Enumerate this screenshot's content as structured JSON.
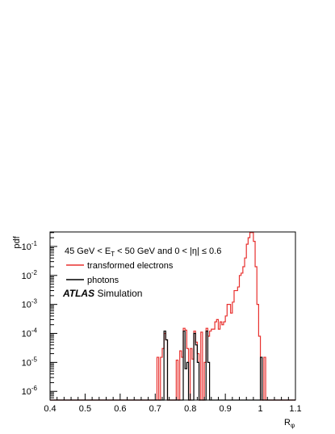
{
  "chart_data": {
    "type": "step-histogram",
    "x_label_main": "R",
    "x_label_sub": "φ",
    "y_label": "pdf",
    "x_range": [
      0.4,
      1.1
    ],
    "y_range_log10": [
      -6.3,
      -0.5
    ],
    "y_scale": "log",
    "x_ticks": [
      "0.4",
      "0.5",
      "0.6",
      "0.7",
      "0.8",
      "0.9",
      "1",
      "1.1"
    ],
    "y_ticks": [
      {
        "base": "10",
        "exp": "-1",
        "value": 0.1
      },
      {
        "base": "10",
        "exp": "-2",
        "value": 0.01
      },
      {
        "base": "10",
        "exp": "-3",
        "value": 0.001
      },
      {
        "base": "10",
        "exp": "-4",
        "value": 0.0001
      },
      {
        "base": "10",
        "exp": "-5",
        "value": 1e-05
      },
      {
        "base": "10",
        "exp": "-6",
        "value": 1e-06
      }
    ],
    "annotation": {
      "part1": "45 GeV < E",
      "sub": "T",
      "part2": " < 50 GeV and 0 < |η| ≤ 0.6"
    },
    "atlas_bold": "ATLAS",
    "atlas_rest": " Simulation",
    "bin_width": 0.005,
    "series": [
      {
        "name": "transformed electrons",
        "color": "#e8302e",
        "bins": [
          [
            0.7,
            5e-07
          ],
          [
            0.705,
            1.5e-05
          ],
          [
            0.71,
            5e-07
          ],
          [
            0.715,
            1.5e-05
          ],
          [
            0.72,
            3e-05
          ],
          [
            0.725,
            0.0001
          ],
          [
            0.73,
            6e-05
          ],
          [
            0.735,
            5e-07
          ],
          [
            0.76,
            1.2e-05
          ],
          [
            0.765,
            5e-07
          ],
          [
            0.77,
            2.5e-05
          ],
          [
            0.775,
            1.5e-05
          ],
          [
            0.78,
            0.00015
          ],
          [
            0.785,
            0.00013
          ],
          [
            0.79,
            3e-05
          ],
          [
            0.795,
            5e-07
          ],
          [
            0.8,
            3e-05
          ],
          [
            0.805,
            1.3e-05
          ],
          [
            0.81,
            0.00012
          ],
          [
            0.815,
            5e-05
          ],
          [
            0.82,
            2e-05
          ],
          [
            0.825,
            5e-07
          ],
          [
            0.83,
            0.00011
          ],
          [
            0.835,
            5e-07
          ],
          [
            0.84,
            1e-05
          ],
          [
            0.845,
            0.00015
          ],
          [
            0.85,
            8e-05
          ],
          [
            0.855,
            0.00012
          ],
          [
            0.86,
            0.00014
          ],
          [
            0.865,
            0.00014
          ],
          [
            0.87,
            0.00025
          ],
          [
            0.875,
            0.0003
          ],
          [
            0.88,
            0.00014
          ],
          [
            0.885,
            0.00025
          ],
          [
            0.89,
            0.0002
          ],
          [
            0.895,
            0.00025
          ],
          [
            0.9,
            0.0004
          ],
          [
            0.905,
            0.001
          ],
          [
            0.91,
            0.001
          ],
          [
            0.915,
            0.0005
          ],
          [
            0.92,
            0.0012
          ],
          [
            0.925,
            0.003
          ],
          [
            0.93,
            0.003
          ],
          [
            0.935,
            0.004
          ],
          [
            0.94,
            0.01
          ],
          [
            0.945,
            0.012
          ],
          [
            0.95,
            0.02
          ],
          [
            0.955,
            0.04
          ],
          [
            0.96,
            0.12
          ],
          [
            0.965,
            0.2
          ],
          [
            0.97,
            0.3
          ],
          [
            0.975,
            0.3
          ],
          [
            0.98,
            0.15
          ],
          [
            0.985,
            0.02
          ],
          [
            0.99,
            0.001
          ],
          [
            0.995,
            8e-05
          ],
          [
            1.0,
            5e-07
          ],
          [
            1.005,
            5e-07
          ],
          [
            1.01,
            1.5e-05
          ],
          [
            1.015,
            5e-07
          ]
        ]
      },
      {
        "name": "photons",
        "color": "#000000",
        "bins": [
          [
            0.725,
            0.00012
          ],
          [
            0.73,
            6e-05
          ],
          [
            0.735,
            5e-07
          ],
          [
            0.775,
            5e-07
          ],
          [
            0.78,
            0.00012
          ],
          [
            0.785,
            6e-06
          ],
          [
            0.79,
            1e-05
          ],
          [
            0.795,
            5e-07
          ],
          [
            0.805,
            5e-07
          ],
          [
            0.81,
            0.0001
          ],
          [
            0.815,
            4e-05
          ],
          [
            0.82,
            1e-05
          ],
          [
            0.825,
            5e-07
          ],
          [
            0.84,
            5e-07
          ],
          [
            0.845,
            0.00012
          ],
          [
            0.85,
            1e-05
          ],
          [
            0.855,
            5e-07
          ],
          [
            0.995,
            5e-07
          ],
          [
            1.0,
            1.5e-05
          ],
          [
            1.005,
            5e-07
          ]
        ]
      }
    ]
  }
}
